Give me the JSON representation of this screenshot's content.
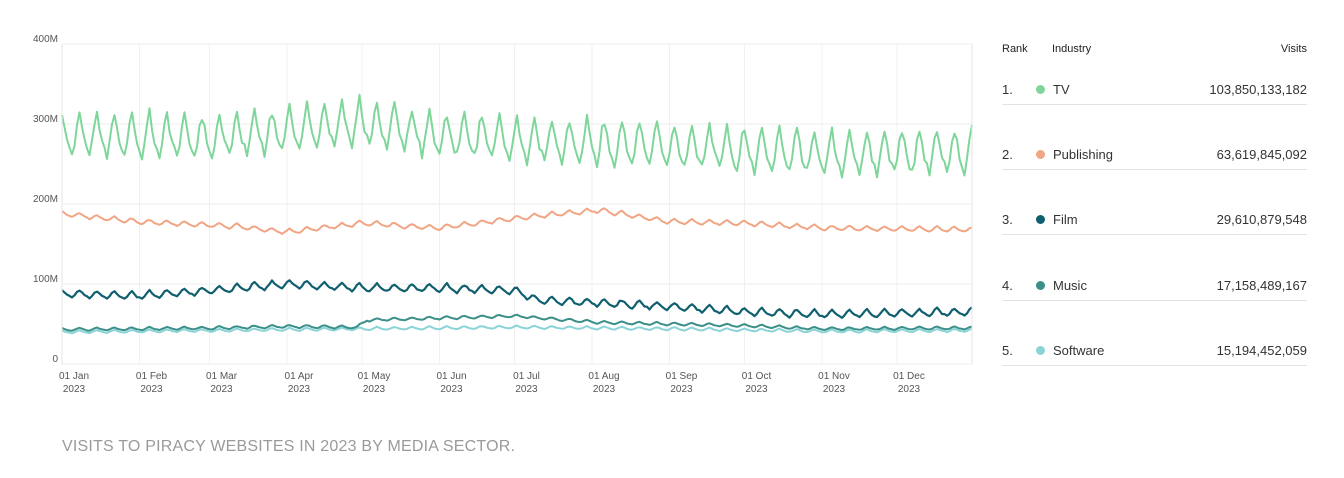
{
  "chart_data": {
    "type": "line",
    "title": "",
    "xlabel": "",
    "ylabel": "",
    "ylim": [
      0,
      400
    ],
    "y_unit": "M",
    "y_ticks": [
      {
        "value": 0,
        "label": "0"
      },
      {
        "value": 100,
        "label": "100M"
      },
      {
        "value": 200,
        "label": "200M"
      },
      {
        "value": 300,
        "label": "300M"
      },
      {
        "value": 400,
        "label": "400M"
      }
    ],
    "x_ticks": [
      {
        "day": 0,
        "label": "01 Jan",
        "year": "2023"
      },
      {
        "day": 31,
        "label": "01 Feb",
        "year": "2023"
      },
      {
        "day": 59,
        "label": "01 Mar",
        "year": "2023"
      },
      {
        "day": 90,
        "label": "01 Apr",
        "year": "2023"
      },
      {
        "day": 120,
        "label": "01 May",
        "year": "2023"
      },
      {
        "day": 151,
        "label": "01 Jun",
        "year": "2023"
      },
      {
        "day": 181,
        "label": "01 Jul",
        "year": "2023"
      },
      {
        "day": 212,
        "label": "01 Aug",
        "year": "2023"
      },
      {
        "day": 243,
        "label": "01 Sep",
        "year": "2023"
      },
      {
        "day": 273,
        "label": "01 Oct",
        "year": "2023"
      },
      {
        "day": 304,
        "label": "01 Nov",
        "year": "2023"
      },
      {
        "day": 334,
        "label": "01 Dec",
        "year": "2023"
      }
    ],
    "x_days": 365,
    "series": [
      {
        "name": "TV",
        "color": "#7ed69a",
        "weekly_amplitude": 45,
        "trend": [
          [
            0,
            285
          ],
          [
            60,
            282
          ],
          [
            120,
            300
          ],
          [
            150,
            285
          ],
          [
            181,
            280
          ],
          [
            243,
            272
          ],
          [
            304,
            262
          ],
          [
            364,
            265
          ]
        ]
      },
      {
        "name": "Publishing",
        "color": "#f0a585",
        "weekly_amplitude": 5,
        "trend": [
          [
            0,
            188
          ],
          [
            30,
            178
          ],
          [
            70,
            172
          ],
          [
            90,
            165
          ],
          [
            120,
            176
          ],
          [
            150,
            170
          ],
          [
            181,
            182
          ],
          [
            200,
            188
          ],
          [
            215,
            192
          ],
          [
            243,
            178
          ],
          [
            273,
            176
          ],
          [
            304,
            170
          ],
          [
            364,
            168
          ]
        ]
      },
      {
        "name": "Film",
        "color": "#0f5f6e",
        "weekly_amplitude": 8,
        "trend": [
          [
            0,
            88
          ],
          [
            30,
            85
          ],
          [
            60,
            92
          ],
          [
            90,
            100
          ],
          [
            120,
            95
          ],
          [
            150,
            95
          ],
          [
            181,
            92
          ],
          [
            190,
            80
          ],
          [
            243,
            72
          ],
          [
            273,
            65
          ],
          [
            304,
            62
          ],
          [
            364,
            65
          ]
        ]
      },
      {
        "name": "Music",
        "color": "#3a8f88",
        "weekly_amplitude": 3,
        "trend": [
          [
            0,
            43
          ],
          [
            60,
            45
          ],
          [
            90,
            47
          ],
          [
            118,
            46
          ],
          [
            122,
            55
          ],
          [
            181,
            60
          ],
          [
            215,
            52
          ],
          [
            273,
            48
          ],
          [
            304,
            44
          ],
          [
            364,
            45
          ]
        ]
      },
      {
        "name": "Software",
        "color": "#8ad3d6",
        "weekly_amplitude": 3,
        "trend": [
          [
            0,
            40
          ],
          [
            60,
            42
          ],
          [
            120,
            44
          ],
          [
            181,
            46
          ],
          [
            243,
            44
          ],
          [
            304,
            41
          ],
          [
            364,
            42
          ]
        ]
      }
    ]
  },
  "legend": {
    "header": {
      "rank": "Rank",
      "industry": "Industry",
      "visits": "Visits"
    },
    "rows": [
      {
        "rank": "1.",
        "industry": "TV",
        "visits": "103,850,133,182",
        "color": "#7ed69a"
      },
      {
        "rank": "2.",
        "industry": "Publishing",
        "visits": "63,619,845,092",
        "color": "#f0a585"
      },
      {
        "rank": "3.",
        "industry": "Film",
        "visits": "29,610,879,548",
        "color": "#0f5f6e"
      },
      {
        "rank": "4.",
        "industry": "Music",
        "visits": "17,158,489,167",
        "color": "#3a8f88"
      },
      {
        "rank": "5.",
        "industry": "Software",
        "visits": "15,194,452,059",
        "color": "#8ad3d6"
      }
    ]
  },
  "caption": "VISITS TO PIRACY WEBSITES IN 2023 BY MEDIA SECTOR."
}
